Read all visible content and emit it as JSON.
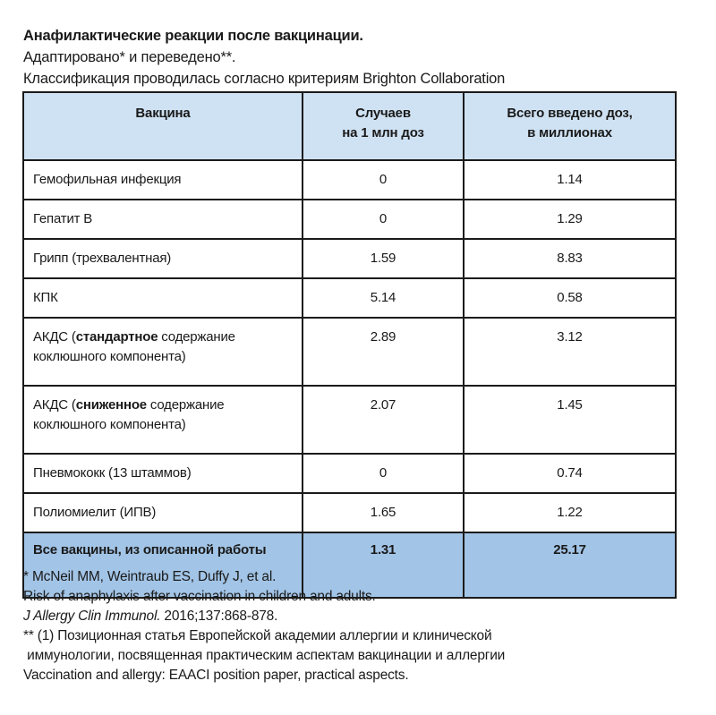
{
  "header": {
    "title": "Анафилактические реакции после вакцинации.",
    "line2": "Адаптировано* и переведено**.",
    "line3": "Классификация проводилась согласно критериям Brighton Collaboration"
  },
  "table": {
    "columns": [
      "Вакцина",
      "Случаев\nна 1 млн доз",
      "Всего введено доз,\nв миллионах"
    ],
    "col2_l1": "Случаев",
    "col2_l2": "на 1 млн доз",
    "col3_l1": "Всего введено доз,",
    "col3_l2": "в миллионах",
    "rows": [
      {
        "vaccine": "Гемофильная инфекция",
        "cases": "0",
        "doses": "1.14"
      },
      {
        "vaccine": "Гепатит В",
        "cases": "0",
        "doses": "1.29"
      },
      {
        "vaccine": "Грипп (трехвалентная)",
        "cases": "1.59",
        "doses": "8.83"
      },
      {
        "vaccine": "КПК",
        "cases": "5.14",
        "doses": "0.58"
      },
      {
        "vaccine_pre": "АКДС (",
        "vaccine_bold": "стандартное",
        "vaccine_post": " содержание коклюшного компонента)",
        "cases": "2.89",
        "doses": "3.12"
      },
      {
        "vaccine_pre": "АКДС (",
        "vaccine_bold": "сниженное",
        "vaccine_post": " содержание коклюшного компонента)",
        "cases": "2.07",
        "doses": "1.45"
      },
      {
        "vaccine": "Пневмококк (13 штаммов)",
        "cases": "0",
        "doses": "0.74"
      },
      {
        "vaccine": "Полиомиелит (ИПВ)",
        "cases": "1.65",
        "doses": "1.22"
      }
    ],
    "total": {
      "vaccine": "Все вакцины, из описанной работы",
      "cases": "1.31",
      "doses": "25.17"
    }
  },
  "footnotes": {
    "f1_l1": "* McNeil MM, Weintraub ES, Duffy J, et al.",
    "f1_l2": "Risk of anaphylaxis after vaccination in children and adults.",
    "f1_journal": "J Allergy Clin Immunol.",
    "f1_ref": " 2016;137:868-878.",
    "f2_l1": "** (1) Позиционная статья Европейской академии аллергии и клинической",
    "f2_l2": " иммунологии, посвященная практическим аспектам вакцинации и аллергии",
    "f2_l3": "Vaccination and allergy: EAACI position paper, practical aspects."
  },
  "colors": {
    "header_bg": "#cfe2f3",
    "total_bg": "#a2c4e6"
  }
}
